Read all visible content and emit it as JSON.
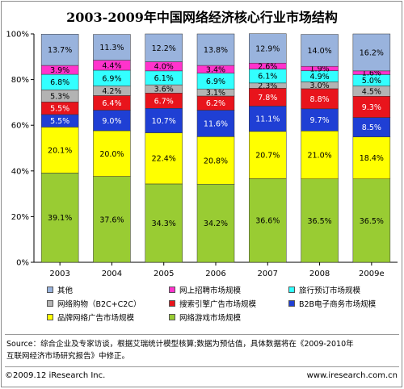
{
  "title": "2003-2009年中国网络经济核心行业市场结构",
  "chart_data": {
    "type": "bar",
    "stacked": true,
    "categories": [
      "2003",
      "2004",
      "2005",
      "2006",
      "2007",
      "2008",
      "2009e"
    ],
    "ylim": [
      0,
      100
    ],
    "yticks": [
      "0%",
      "20%",
      "40%",
      "60%",
      "80%",
      "100%"
    ],
    "series": [
      {
        "name": "网络游戏市场规模",
        "color": "#99cc33",
        "values": [
          39.1,
          37.6,
          34.3,
          34.2,
          36.6,
          36.5,
          36.5
        ],
        "labels": [
          "39.1%",
          "37.6%",
          "34.3%",
          "34.2%",
          "36.6%",
          "36.5%",
          "36.5%"
        ]
      },
      {
        "name": "品牌网络广告市场规模",
        "color": "#ffff00",
        "values": [
          20.1,
          20.0,
          22.4,
          20.8,
          20.7,
          21.0,
          18.4
        ],
        "labels": [
          "20.1%",
          "20.0%",
          "22.4%",
          "20.8%",
          "20.7%",
          "21.0%",
          "18.4%"
        ]
      },
      {
        "name": "B2B电子商务市场规模",
        "color": "#1f3fd4",
        "values": [
          5.5,
          9.0,
          10.7,
          11.6,
          11.1,
          9.7,
          8.5
        ],
        "labels": [
          "5.5%",
          "9.0%",
          "10.7%",
          "11.6%",
          "11.1%",
          "9.7%",
          "8.5%"
        ]
      },
      {
        "name": "搜索引擎广告市场规模",
        "color": "#e8141c",
        "values": [
          5.5,
          6.4,
          6.7,
          6.2,
          7.8,
          8.8,
          9.3
        ],
        "labels": [
          "5.5%",
          "6.4%",
          "6.7%",
          "6.2%",
          "7.8%",
          "8.8%",
          "9.3%"
        ]
      },
      {
        "name": "网络购物（B2C+C2C）",
        "color": "#b3b3b3",
        "values": [
          5.3,
          4.2,
          3.6,
          3.1,
          2.3,
          3.0,
          4.5
        ],
        "labels": [
          "5.3%",
          "4.2%",
          "3.6%",
          "3.1%",
          "2.3%",
          "3.0%",
          "4.5%"
        ]
      },
      {
        "name": "旅行预订市场规模",
        "color": "#33ffff",
        "values": [
          6.8,
          6.9,
          6.1,
          6.9,
          6.1,
          4.9,
          5.0
        ],
        "labels": [
          "6.8%",
          "6.9%",
          "6.1%",
          "6.9%",
          "6.1%",
          "4.9%",
          "5.0%"
        ]
      },
      {
        "name": "网上招聘市场规模",
        "color": "#ff33cc",
        "values": [
          3.9,
          4.4,
          4.0,
          3.4,
          2.6,
          1.9,
          1.6
        ],
        "labels": [
          "3.9%",
          "4.4%",
          "4.0%",
          "3.4%",
          "2.6%",
          "1.9%",
          "1.6%"
        ]
      },
      {
        "name": "其他",
        "color": "#99b3dd",
        "values": [
          13.7,
          11.3,
          12.2,
          13.8,
          12.9,
          14.0,
          16.2
        ],
        "labels": [
          "13.7%",
          "11.3%",
          "12.2%",
          "13.8%",
          "12.9%",
          "14.0%",
          "16.2%"
        ]
      }
    ]
  },
  "legend": {
    "items": [
      {
        "label": "其他",
        "color": "#99b3dd"
      },
      {
        "label": "网上招聘市场规模",
        "color": "#ff33cc"
      },
      {
        "label": "旅行预订市场规模",
        "color": "#33ffff"
      },
      {
        "label": "网络购物（B2C+C2C）",
        "color": "#b3b3b3"
      },
      {
        "label": "搜索引擎广告市场规模",
        "color": "#e8141c"
      },
      {
        "label": "B2B电子商务市场规模",
        "color": "#1f3fd4"
      },
      {
        "label": "品牌网络广告市场规模",
        "color": "#ffff00"
      },
      {
        "label": "网络游戏市场规模",
        "color": "#99cc33"
      }
    ]
  },
  "source_line1": "Source：综合企业及专家访谈，根据艾瑞统计模型核算;数据为预估值，具体数据将在《2009-2010年",
  "source_line2": "互联网经济市场研究报告》中修正。",
  "footer_left": "©2009.12 iResearch Inc.",
  "footer_right": "www.iresearch.com.cn"
}
